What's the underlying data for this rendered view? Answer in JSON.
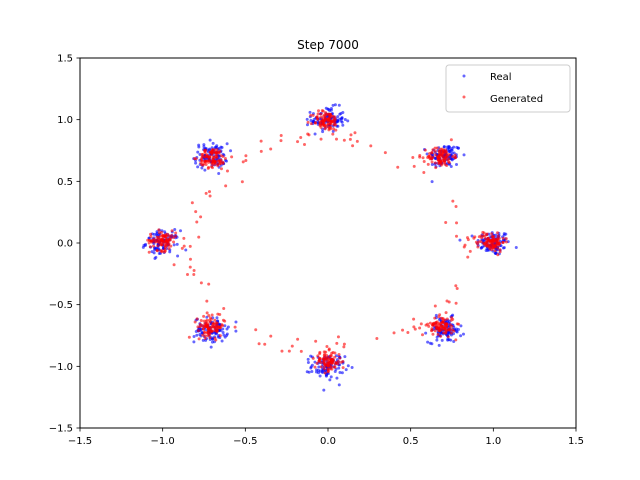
{
  "chart_data": {
    "type": "scatter",
    "title": "Step 7000",
    "xlabel": "",
    "ylabel": "",
    "xlim": [
      -1.5,
      1.5
    ],
    "ylim": [
      -1.5,
      1.5
    ],
    "x_ticks": [
      -1.5,
      -1.0,
      -0.5,
      0.0,
      0.5,
      1.0,
      1.5
    ],
    "y_ticks": [
      -1.5,
      -1.0,
      -0.5,
      0.0,
      0.5,
      1.0,
      1.5
    ],
    "x_tick_labels": [
      "−1.5",
      "−1.0",
      "−0.5",
      "0.0",
      "0.5",
      "1.0",
      "1.5"
    ],
    "y_tick_labels": [
      "−1.5",
      "−1.0",
      "−0.5",
      "0.0",
      "0.5",
      "1.0",
      "1.5"
    ],
    "grid": false,
    "legend_position": "top-right",
    "series": [
      {
        "name": "Real",
        "color": "#0000ff",
        "cluster_centers": [
          [
            1.0,
            0.0
          ],
          [
            0.707,
            0.707
          ],
          [
            0.0,
            1.0
          ],
          [
            -0.707,
            0.707
          ],
          [
            -1.0,
            0.0
          ],
          [
            -0.707,
            -0.707
          ],
          [
            0.0,
            -1.0
          ],
          [
            0.707,
            -0.707
          ]
        ],
        "cluster_std": 0.05,
        "points_per_cluster": 100
      },
      {
        "name": "Generated",
        "color": "#ff0000",
        "cluster_centers": [
          [
            0.99,
            0.01
          ],
          [
            0.68,
            0.7
          ],
          [
            -0.01,
            0.99
          ],
          [
            -0.7,
            0.69
          ],
          [
            -1.0,
            0.02
          ],
          [
            -0.71,
            -0.68
          ],
          [
            0.0,
            -0.96
          ],
          [
            0.69,
            -0.67
          ]
        ],
        "cluster_std": 0.04,
        "points_per_cluster": 90,
        "bridge_points": 110,
        "bridge_radius": 0.85
      }
    ]
  }
}
